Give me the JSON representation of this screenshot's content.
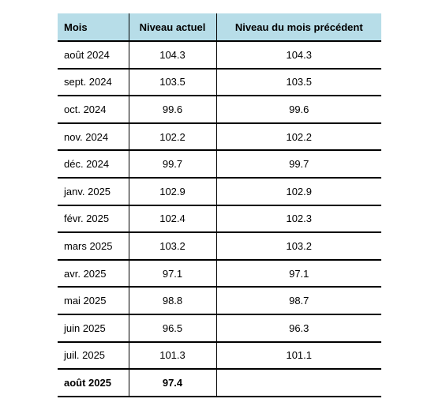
{
  "table": {
    "headers": [
      "Mois",
      "Niveau actuel",
      "Niveau du mois précédent"
    ],
    "rows": [
      {
        "mois": "août 2024",
        "actuel": "104.3",
        "precedent": "104.3"
      },
      {
        "mois": "sept. 2024",
        "actuel": "103.5",
        "precedent": "103.5"
      },
      {
        "mois": "oct. 2024",
        "actuel": "99.6",
        "precedent": "99.6"
      },
      {
        "mois": "nov. 2024",
        "actuel": "102.2",
        "precedent": "102.2"
      },
      {
        "mois": "déc. 2024",
        "actuel": "99.7",
        "precedent": "99.7"
      },
      {
        "mois": "janv. 2025",
        "actuel": "102.9",
        "precedent": "102.9"
      },
      {
        "mois": "févr. 2025",
        "actuel": "102.4",
        "precedent": "102.3"
      },
      {
        "mois": "mars 2025",
        "actuel": "103.2",
        "precedent": "103.2"
      },
      {
        "mois": "avr. 2025",
        "actuel": "97.1",
        "precedent": "97.1"
      },
      {
        "mois": "mai 2025",
        "actuel": "98.8",
        "precedent": "98.7"
      },
      {
        "mois": "juin 2025",
        "actuel": "96.5",
        "precedent": "96.3"
      },
      {
        "mois": "juil. 2025",
        "actuel": "101.3",
        "precedent": "101.1"
      },
      {
        "mois": "août 2025",
        "actuel": "97.4",
        "precedent": ""
      }
    ]
  },
  "colors": {
    "header_background": "#b7dde8",
    "rule": "#000000"
  }
}
